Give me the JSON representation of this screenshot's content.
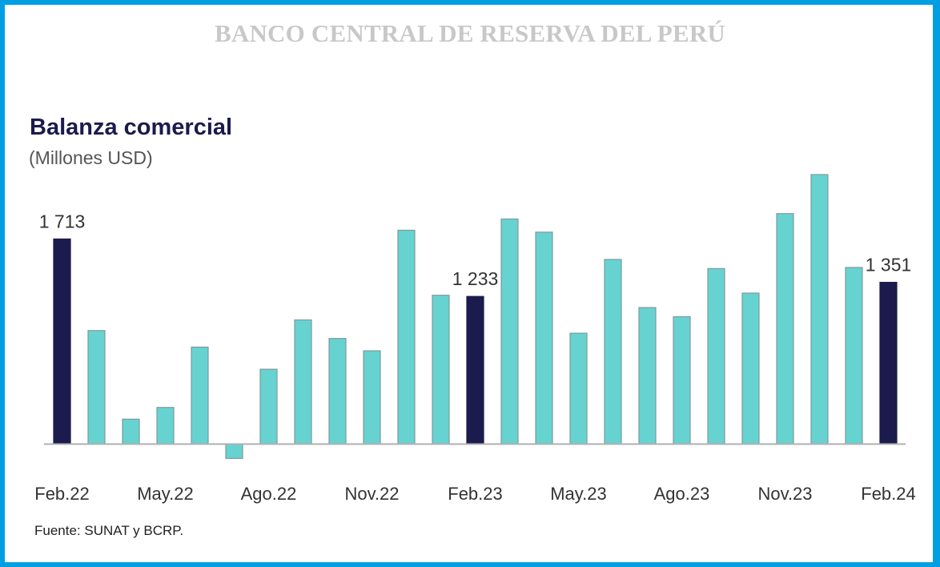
{
  "header": {
    "bank_name": "BANCO CENTRAL DE RESERVA DEL PERÚ"
  },
  "footer": {
    "source": "Fuente: SUNAT y BCRP."
  },
  "colors": {
    "frame": "#009fe3",
    "highlight_bar": "#1b1b4d",
    "regular_bar": "#66d3d1",
    "bar_outline": "#7f9a9a",
    "axis": "#b0b0b0"
  },
  "chart_data": {
    "type": "bar",
    "title": "Balanza comercial",
    "subtitle": "(Millones USD)",
    "xlabel": "",
    "ylabel": "Millones USD",
    "ylim": [
      -150,
      2300
    ],
    "grid": false,
    "legend": "none",
    "categories": [
      "Feb.22",
      "Mar.22",
      "Abr.22",
      "May.22",
      "Jun.22",
      "Jul.22",
      "Ago.22",
      "Sep.22",
      "Oct.22",
      "Nov.22",
      "Dic.22",
      "Ene.23",
      "Feb.23",
      "Mar.23",
      "Abr.23",
      "May.23",
      "Jun.23",
      "Jul.23",
      "Ago.23",
      "Sep.23",
      "Oct.23",
      "Nov.23",
      "Dic.23",
      "Ene.24",
      "Feb.24"
    ],
    "values": [
      1713,
      948,
      208,
      306,
      810,
      -120,
      625,
      1037,
      882,
      779,
      1786,
      1243,
      1233,
      1880,
      1770,
      926,
      1542,
      1140,
      1064,
      1466,
      1261,
      1925,
      2251,
      1475,
      1351
    ],
    "highlighted": [
      0,
      12,
      24
    ],
    "data_labels": [
      {
        "index": 0,
        "text": "1 713"
      },
      {
        "index": 12,
        "text": "1 233"
      },
      {
        "index": 24,
        "text": "1 351"
      }
    ],
    "x_tick_labels": [
      {
        "index": 0,
        "text": "Feb.22"
      },
      {
        "index": 3,
        "text": "May.22"
      },
      {
        "index": 6,
        "text": "Ago.22"
      },
      {
        "index": 9,
        "text": "Nov.22"
      },
      {
        "index": 12,
        "text": "Feb.23"
      },
      {
        "index": 15,
        "text": "May.23"
      },
      {
        "index": 18,
        "text": "Ago.23"
      },
      {
        "index": 21,
        "text": "Nov.23"
      },
      {
        "index": 24,
        "text": "Feb.24"
      }
    ]
  }
}
